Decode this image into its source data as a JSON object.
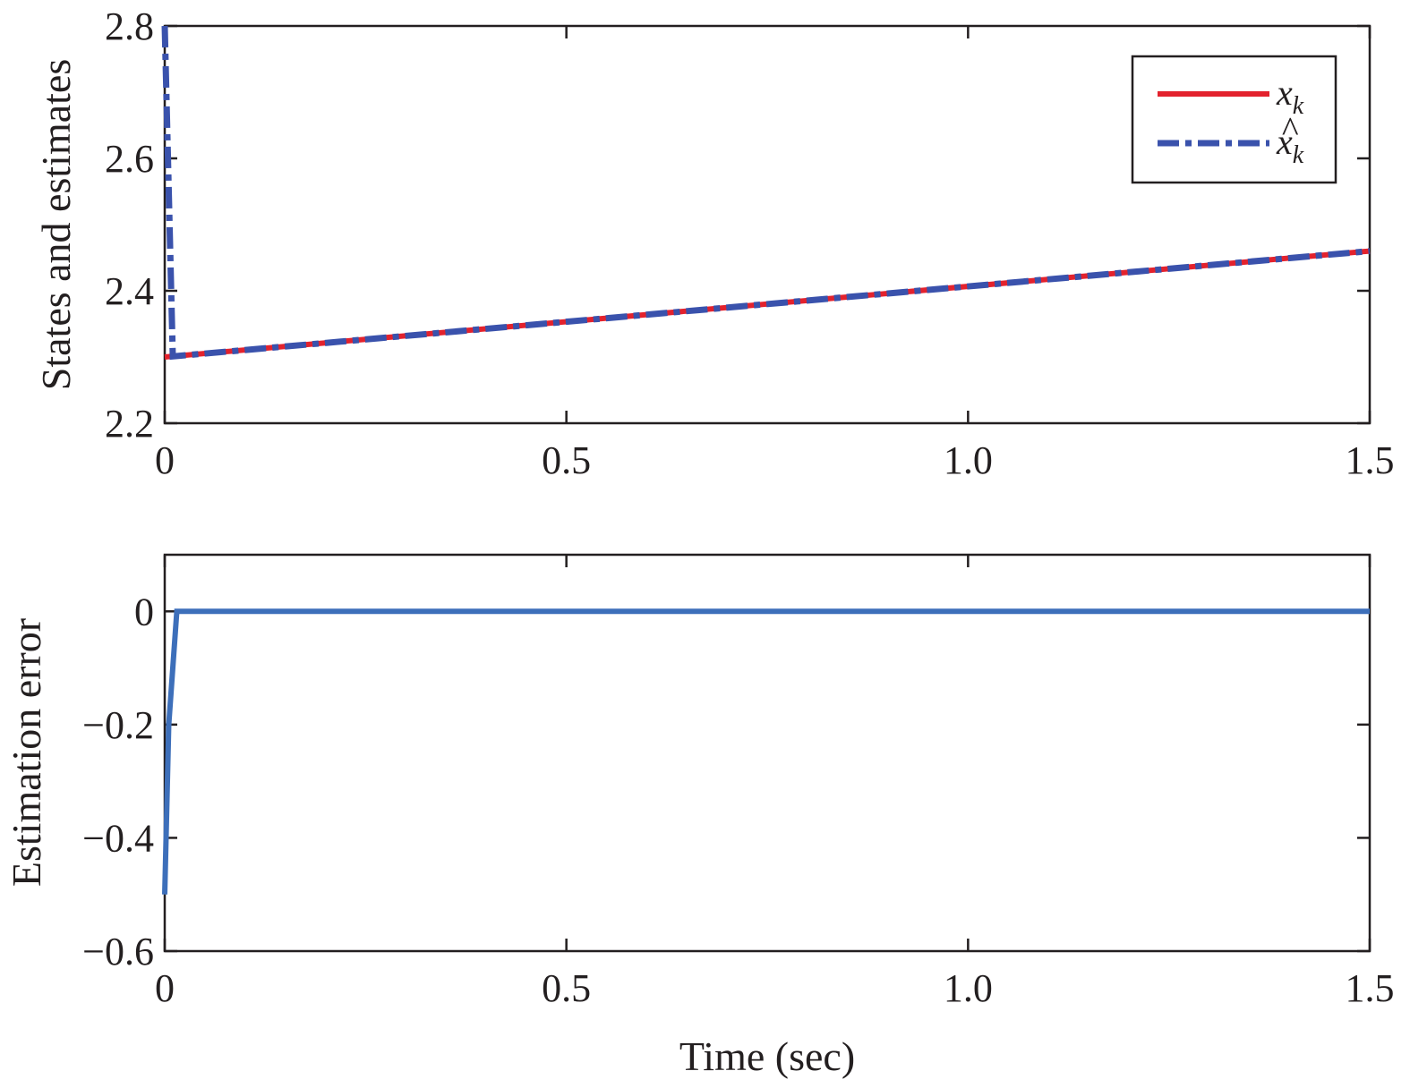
{
  "colors": {
    "state": "#e3222d",
    "estimate": "#3a52ac",
    "error": "#3d6fba",
    "axis": "#231f20"
  },
  "chart_data": [
    {
      "type": "line",
      "xlabel": "",
      "ylabel": "States and estimates",
      "xlim": [
        0,
        1.5
      ],
      "ylim": [
        2.2,
        2.8
      ],
      "xticks": [
        "0",
        "0.5",
        "1.0",
        "1.5"
      ],
      "yticks": [
        "2.2",
        "2.4",
        "2.6",
        "2.8"
      ],
      "grid": false,
      "legend_position": "top-right",
      "legend": [
        {
          "symbol": "x",
          "subscript": "k",
          "hat": false
        },
        {
          "symbol": "x",
          "subscript": "k",
          "hat": true
        }
      ],
      "series": [
        {
          "name": "x_k",
          "style": "solid",
          "x": [
            0,
            1.5
          ],
          "y": [
            2.3,
            2.46
          ]
        },
        {
          "name": "x̂_k",
          "style": "dashdot",
          "x": [
            0,
            0.01,
            1.5
          ],
          "y": [
            2.8,
            2.301,
            2.46
          ]
        }
      ]
    },
    {
      "type": "line",
      "xlabel": "Time (sec)",
      "ylabel": "Estimation error",
      "xlim": [
        0,
        1.5
      ],
      "ylim": [
        -0.6,
        0.1
      ],
      "xticks": [
        "0",
        "0.5",
        "1.0",
        "1.5"
      ],
      "yticks": [
        "0",
        "−0.2",
        "−0.4",
        "−0.6"
      ],
      "grid": false,
      "series": [
        {
          "style": "solid",
          "x": [
            0,
            0.005,
            0.015,
            1.5
          ],
          "y": [
            -0.5,
            -0.2,
            0,
            0
          ]
        }
      ]
    }
  ]
}
